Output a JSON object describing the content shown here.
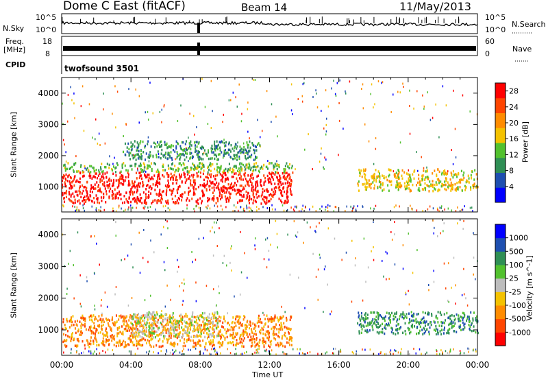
{
  "header": {
    "station": "Dome C East (fitACF)",
    "beam": "Beam 14",
    "date": "11/May/2013"
  },
  "summary": {
    "nsky_label": "N.Sky",
    "nsky_ticks": [
      "10^5",
      "10^0"
    ],
    "nsearch_label": "N.Search",
    "freq_label_top": "Freq.",
    "freq_label_bottom": "[MHz]",
    "freq_ticks": [
      "18",
      "8"
    ],
    "nave_ticks": [
      "60",
      "0"
    ],
    "nave_label": "Nave",
    "cpid_label": "CPID",
    "cpid_value": "twofsound 3501"
  },
  "colors": {
    "power": [
      "#0000ff",
      "#1e4fb0",
      "#2f8f55",
      "#52c12e",
      "#f4c200",
      "#ff8c00",
      "#ff4500",
      "#ff0000"
    ],
    "velocity": [
      "#ff0000",
      "#ff4500",
      "#ff8c00",
      "#f4c200",
      "#bdbdbd",
      "#52c12e",
      "#2f8f55",
      "#1e4fb0",
      "#0000ff"
    ]
  },
  "chart_data": [
    {
      "type": "heatmap",
      "title": "",
      "xlabel": "",
      "ylabel": "Slant Range [km]",
      "xlim": [
        "00:00",
        "24:00"
      ],
      "ylim": [
        200,
        4500
      ],
      "xticks": [
        "00:00",
        "04:00",
        "08:00",
        "12:00",
        "16:00",
        "20:00",
        "00:00"
      ],
      "yticks": [
        1000,
        2000,
        3000,
        4000
      ],
      "colorbar": {
        "label": "Power [dB]",
        "ticks": [
          4,
          8,
          12,
          16,
          20,
          24,
          28
        ],
        "range": [
          0,
          30
        ]
      },
      "regions": [
        {
          "from_hour": 0,
          "to_hour": 13.3,
          "range_km": [
            500,
            1500
          ],
          "value": 28
        },
        {
          "from_hour": 0,
          "to_hour": 13.3,
          "range_km": [
            1500,
            1800
          ],
          "value": 14
        },
        {
          "from_hour": 3.5,
          "to_hour": 11.5,
          "range_km": [
            1900,
            2500
          ],
          "value": 9
        },
        {
          "from_hour": 17,
          "to_hour": 24,
          "range_km": [
            900,
            1600
          ],
          "value": 18
        }
      ]
    },
    {
      "type": "heatmap",
      "title": "",
      "xlabel": "Time UT",
      "ylabel": "Slant Range [km]",
      "xlim": [
        "00:00",
        "24:00"
      ],
      "ylim": [
        200,
        4500
      ],
      "xticks": [
        "00:00",
        "04:00",
        "08:00",
        "12:00",
        "16:00",
        "20:00",
        "00:00"
      ],
      "yticks": [
        1000,
        2000,
        3000,
        4000
      ],
      "colorbar": {
        "label": "Velocity [m s^-1]",
        "ticks": [
          "1000",
          "500",
          "100",
          "25",
          "-25",
          "-100",
          "-500",
          "-1000"
        ]
      },
      "regions": [
        {
          "from_hour": 0,
          "to_hour": 13.3,
          "range_km": [
            500,
            1500
          ],
          "value": -150
        },
        {
          "from_hour": 4,
          "to_hour": 9,
          "range_km": [
            800,
            1600
          ],
          "value": 0
        },
        {
          "from_hour": 17,
          "to_hour": 24,
          "range_km": [
            900,
            1600
          ],
          "value": 200
        }
      ]
    }
  ]
}
